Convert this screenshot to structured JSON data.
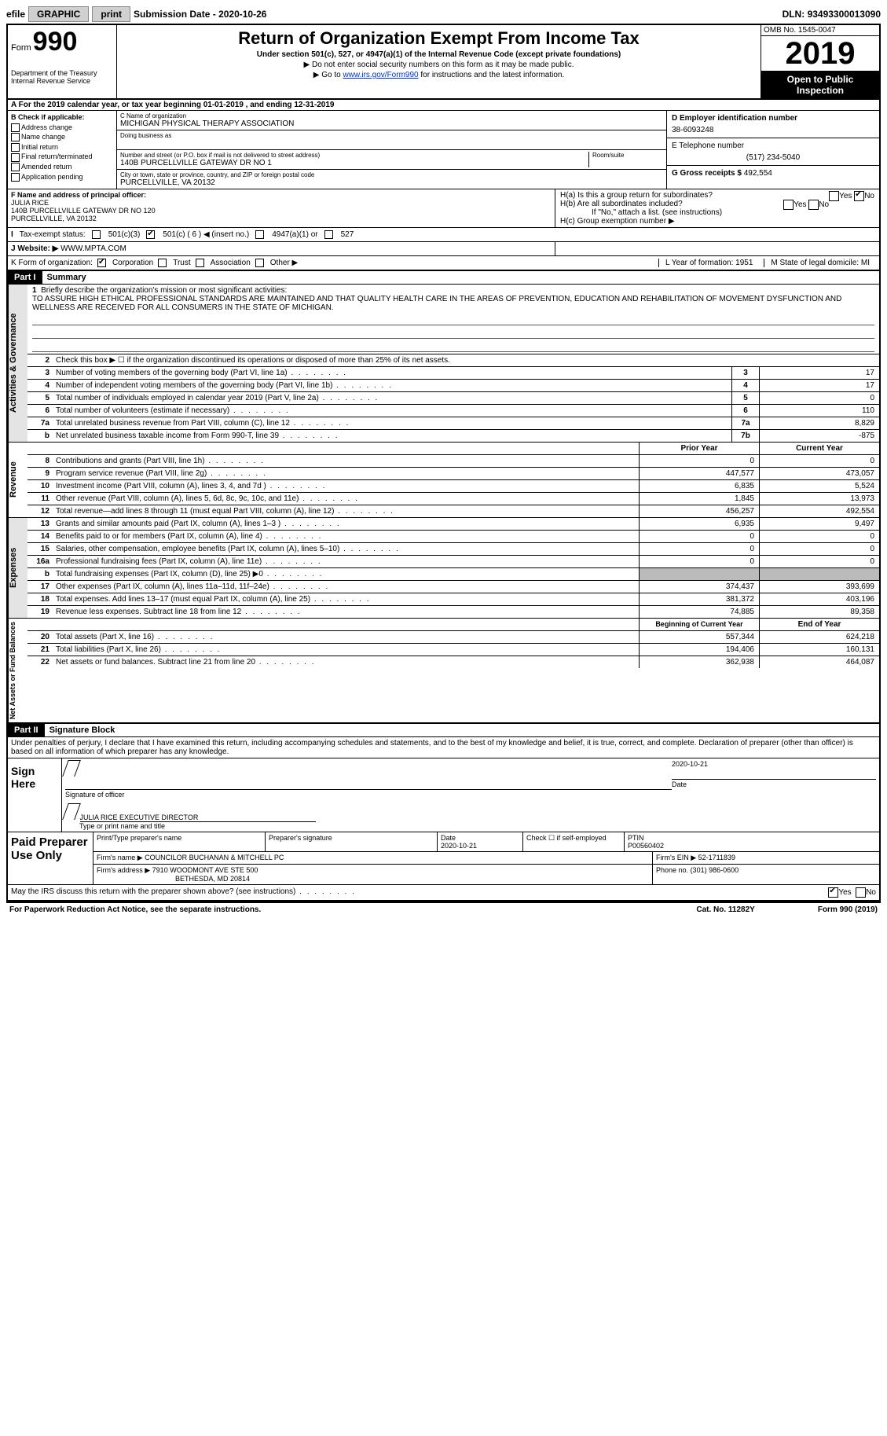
{
  "topbar": {
    "efile": "efile",
    "graphic": "GRAPHIC",
    "print": "print",
    "subdate_label": "Submission Date - ",
    "subdate": "2020-10-26",
    "dln_label": "DLN: ",
    "dln": "93493300013090"
  },
  "header": {
    "form_word": "Form",
    "form_num": "990",
    "dept": "Department of the Treasury\nInternal Revenue Service",
    "title": "Return of Organization Exempt From Income Tax",
    "subtitle": "Under section 501(c), 527, or 4947(a)(1) of the Internal Revenue Code (except private foundations)",
    "instr1": "▶ Do not enter social security numbers on this form as it may be made public.",
    "instr2_pre": "▶ Go to ",
    "instr2_link": "www.irs.gov/Form990",
    "instr2_post": " for instructions and the latest information.",
    "omb": "OMB No. 1545-0047",
    "year": "2019",
    "public1": "Open to Public",
    "public2": "Inspection"
  },
  "rowA": "A For the 2019 calendar year, or tax year beginning 01-01-2019   , and ending 12-31-2019",
  "colB": {
    "hdr": "B Check if applicable:",
    "items": [
      "Address change",
      "Name change",
      "Initial return",
      "Final return/terminated",
      "Amended return",
      "Application pending"
    ]
  },
  "colC": {
    "c_label": "C Name of organization",
    "c_val": "MICHIGAN PHYSICAL THERAPY ASSOCIATION",
    "dba_label": "Doing business as",
    "addr_label": "Number and street (or P.O. box if mail is not delivered to street address)",
    "addr_val": "140B PURCELLVILLE GATEWAY DR NO 1",
    "room_label": "Room/suite",
    "city_label": "City or town, state or province, country, and ZIP or foreign postal code",
    "city_val": "PURCELLVILLE, VA  20132"
  },
  "colD": {
    "d_label": "D Employer identification number",
    "d_val": "38-6093248",
    "e_label": "E Telephone number",
    "e_val": "(517) 234-5040",
    "g_label": "G Gross receipts $ ",
    "g_val": "492,554"
  },
  "rowF": {
    "label": "F Name and address of principal officer:",
    "name": "JULIA RICE",
    "addr": "140B PURCELLVILLE GATEWAY DR NO 120",
    "city": "PURCELLVILLE, VA  20132"
  },
  "rowH": {
    "ha": "H(a)  Is this a group return for subordinates?",
    "hb": "H(b)  Are all subordinates included?",
    "hb2": "If \"No,\" attach a list. (see instructions)",
    "hc": "H(c)  Group exemption number ▶",
    "yes": "Yes",
    "no": "No"
  },
  "rowI": {
    "label": "Tax-exempt status:",
    "o1": "501(c)(3)",
    "o2": "501(c) ( 6 ) ◀ (insert no.)",
    "o3": "4947(a)(1) or",
    "o4": "527"
  },
  "rowJ": {
    "label": "J   Website: ▶",
    "val": "WWW.MPTA.COM"
  },
  "rowK": {
    "label": "K Form of organization:",
    "o1": "Corporation",
    "o2": "Trust",
    "o3": "Association",
    "o4": "Other ▶"
  },
  "rowLM": {
    "l": "L Year of formation: 1951",
    "m": "M State of legal domicile: MI"
  },
  "part1": {
    "tag": "Part I",
    "title": "Summary",
    "q1_label": "Briefly describe the organization's mission or most significant activities:",
    "q1_text": "TO ASSURE HIGH ETHICAL PROFESSIONAL STANDARDS ARE MAINTAINED AND THAT QUALITY HEALTH CARE IN THE AREAS OF PREVENTION, EDUCATION AND REHABILITATION OF MOVEMENT DYSFUNCTION AND WELLNESS ARE RECEIVED FOR ALL CONSUMERS IN THE STATE OF MICHIGAN.",
    "q2": "Check this box ▶ ☐  if the organization discontinued its operations or disposed of more than 25% of its net assets.",
    "vtab1": "Activities & Governance",
    "vtab2": "Revenue",
    "vtab3": "Expenses",
    "vtab4": "Net Assets or Fund Balances",
    "lines_ag": [
      {
        "n": "3",
        "d": "Number of voting members of the governing body (Part VI, line 1a)",
        "box": "3",
        "v": "17"
      },
      {
        "n": "4",
        "d": "Number of independent voting members of the governing body (Part VI, line 1b)",
        "box": "4",
        "v": "17"
      },
      {
        "n": "5",
        "d": "Total number of individuals employed in calendar year 2019 (Part V, line 2a)",
        "box": "5",
        "v": "0"
      },
      {
        "n": "6",
        "d": "Total number of volunteers (estimate if necessary)",
        "box": "6",
        "v": "110"
      },
      {
        "n": "7a",
        "d": "Total unrelated business revenue from Part VIII, column (C), line 12",
        "box": "7a",
        "v": "8,829"
      },
      {
        "n": "b",
        "d": "Net unrelated business taxable income from Form 990-T, line 39",
        "box": "7b",
        "v": "-875"
      }
    ],
    "hdr_prior": "Prior Year",
    "hdr_curr": "Current Year",
    "lines_rev": [
      {
        "n": "8",
        "d": "Contributions and grants (Part VIII, line 1h)",
        "p": "0",
        "c": "0"
      },
      {
        "n": "9",
        "d": "Program service revenue (Part VIII, line 2g)",
        "p": "447,577",
        "c": "473,057"
      },
      {
        "n": "10",
        "d": "Investment income (Part VIII, column (A), lines 3, 4, and 7d )",
        "p": "6,835",
        "c": "5,524"
      },
      {
        "n": "11",
        "d": "Other revenue (Part VIII, column (A), lines 5, 6d, 8c, 9c, 10c, and 11e)",
        "p": "1,845",
        "c": "13,973"
      },
      {
        "n": "12",
        "d": "Total revenue—add lines 8 through 11 (must equal Part VIII, column (A), line 12)",
        "p": "456,257",
        "c": "492,554"
      }
    ],
    "lines_exp": [
      {
        "n": "13",
        "d": "Grants and similar amounts paid (Part IX, column (A), lines 1–3 )",
        "p": "6,935",
        "c": "9,497"
      },
      {
        "n": "14",
        "d": "Benefits paid to or for members (Part IX, column (A), line 4)",
        "p": "0",
        "c": "0"
      },
      {
        "n": "15",
        "d": "Salaries, other compensation, employee benefits (Part IX, column (A), lines 5–10)",
        "p": "0",
        "c": "0"
      },
      {
        "n": "16a",
        "d": "Professional fundraising fees (Part IX, column (A), line 11e)",
        "p": "0",
        "c": "0"
      },
      {
        "n": "b",
        "d": "Total fundraising expenses (Part IX, column (D), line 25) ▶0",
        "p": "",
        "c": "",
        "gray": true
      },
      {
        "n": "17",
        "d": "Other expenses (Part IX, column (A), lines 11a–11d, 11f–24e)",
        "p": "374,437",
        "c": "393,699"
      },
      {
        "n": "18",
        "d": "Total expenses. Add lines 13–17 (must equal Part IX, column (A), line 25)",
        "p": "381,372",
        "c": "403,196"
      },
      {
        "n": "19",
        "d": "Revenue less expenses. Subtract line 18 from line 12",
        "p": "74,885",
        "c": "89,358"
      }
    ],
    "hdr_begin": "Beginning of Current Year",
    "hdr_end": "End of Year",
    "lines_na": [
      {
        "n": "20",
        "d": "Total assets (Part X, line 16)",
        "p": "557,344",
        "c": "624,218"
      },
      {
        "n": "21",
        "d": "Total liabilities (Part X, line 26)",
        "p": "194,406",
        "c": "160,131"
      },
      {
        "n": "22",
        "d": "Net assets or fund balances. Subtract line 21 from line 20",
        "p": "362,938",
        "c": "464,087"
      }
    ]
  },
  "part2": {
    "tag": "Part II",
    "title": "Signature Block",
    "intro": "Under penalties of perjury, I declare that I have examined this return, including accompanying schedules and statements, and to the best of my knowledge and belief, it is true, correct, and complete. Declaration of preparer (other than officer) is based on all information of which preparer has any knowledge.",
    "sign_here": "Sign Here",
    "sig_officer": "Signature of officer",
    "sig_date_label": "Date",
    "sig_date": "2020-10-21",
    "sig_name": "JULIA RICE  EXECUTIVE DIRECTOR",
    "sig_name_label": "Type or print name and title",
    "paid": "Paid Preparer Use Only",
    "prep_hdr": [
      "Print/Type preparer's name",
      "Preparer's signature",
      "Date",
      "Check ☐ if self-employed",
      "PTIN"
    ],
    "prep_r1": [
      "",
      "",
      "2020-10-21",
      "",
      "P00560402"
    ],
    "firm_name_label": "Firm's name    ▶",
    "firm_name": "COUNCILOR BUCHANAN & MITCHELL PC",
    "firm_ein_label": "Firm's EIN ▶",
    "firm_ein": "52-1711839",
    "firm_addr_label": "Firm's address ▶",
    "firm_addr1": "7910 WOODMONT AVE STE 500",
    "firm_addr2": "BETHESDA, MD  20814",
    "phone_label": "Phone no.",
    "phone": "(301) 986-0600",
    "discuss": "May the IRS discuss this return with the preparer shown above? (see instructions)",
    "yes": "Yes",
    "no": "No"
  },
  "footer": {
    "left": "For Paperwork Reduction Act Notice, see the separate instructions.",
    "mid": "Cat. No. 11282Y",
    "right": "Form 990 (2019)"
  }
}
